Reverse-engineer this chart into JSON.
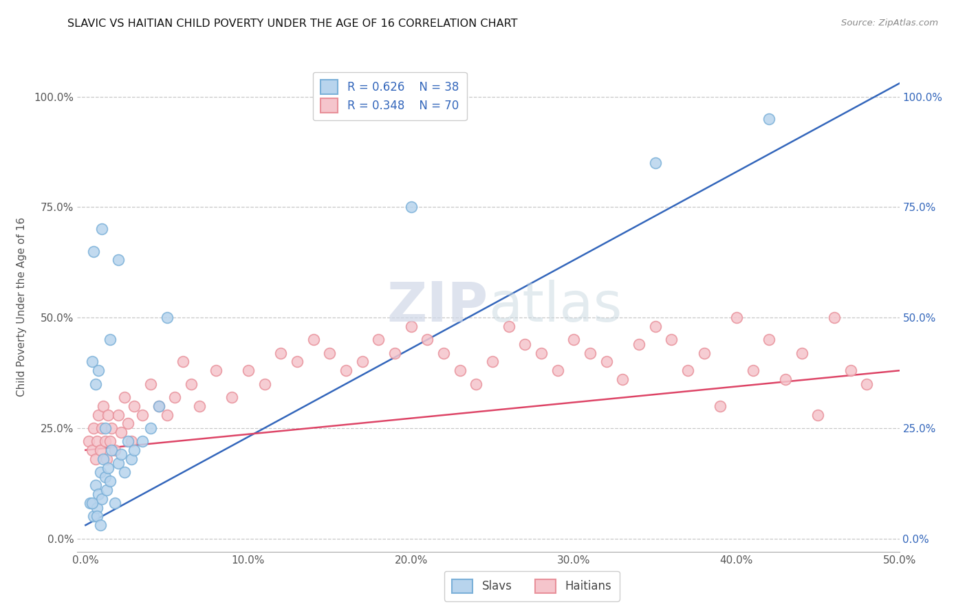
{
  "title": "SLAVIC VS HAITIAN CHILD POVERTY UNDER THE AGE OF 16 CORRELATION CHART",
  "source": "Source: ZipAtlas.com",
  "ylabel": "Child Poverty Under the Age of 16",
  "x_tick_labels": [
    "0.0%",
    "10.0%",
    "20.0%",
    "30.0%",
    "40.0%",
    "50.0%"
  ],
  "x_tick_vals": [
    0,
    10,
    20,
    30,
    40,
    50
  ],
  "y_tick_labels": [
    "0.0%",
    "25.0%",
    "50.0%",
    "75.0%",
    "100.0%"
  ],
  "y_tick_vals": [
    0,
    25,
    50,
    75,
    100
  ],
  "xlim": [
    -0.5,
    50
  ],
  "ylim": [
    -3,
    108
  ],
  "grid_color": "#c8c8c8",
  "background_color": "#ffffff",
  "slavs_color": "#7ab0d8",
  "slavs_color_fill": "#b8d4ed",
  "haitians_color": "#e8909a",
  "haitians_color_fill": "#f5c5cc",
  "slavs_label": "Slavs",
  "haitians_label": "Haitians",
  "blue_line_color": "#3366bb",
  "pink_line_color": "#dd4466",
  "slavs_x": [
    0.3,
    0.5,
    0.6,
    0.7,
    0.8,
    0.9,
    1.0,
    1.1,
    1.2,
    1.3,
    1.4,
    1.5,
    1.6,
    1.8,
    2.0,
    2.2,
    2.4,
    2.6,
    2.8,
    3.0,
    3.5,
    4.0,
    4.5,
    2.0,
    1.0,
    0.5,
    0.4,
    0.6,
    0.8,
    1.5,
    5.0,
    20.0,
    35.0,
    42.0,
    0.7,
    1.2,
    0.9,
    0.4
  ],
  "slavs_y": [
    8,
    5,
    12,
    7,
    10,
    15,
    9,
    18,
    14,
    11,
    16,
    13,
    20,
    8,
    17,
    19,
    15,
    22,
    18,
    20,
    22,
    25,
    30,
    63,
    70,
    65,
    40,
    35,
    38,
    45,
    50,
    75,
    85,
    95,
    5,
    25,
    3,
    8
  ],
  "haitians_x": [
    0.2,
    0.4,
    0.5,
    0.6,
    0.7,
    0.8,
    0.9,
    1.0,
    1.1,
    1.2,
    1.3,
    1.4,
    1.5,
    1.6,
    1.8,
    2.0,
    2.2,
    2.4,
    2.6,
    2.8,
    3.0,
    3.5,
    4.0,
    4.5,
    5.0,
    5.5,
    6.0,
    6.5,
    7.0,
    8.0,
    9.0,
    10.0,
    11.0,
    12.0,
    13.0,
    14.0,
    15.0,
    16.0,
    17.0,
    18.0,
    19.0,
    20.0,
    21.0,
    22.0,
    23.0,
    24.0,
    25.0,
    26.0,
    27.0,
    28.0,
    29.0,
    30.0,
    31.0,
    32.0,
    33.0,
    34.0,
    35.0,
    36.0,
    37.0,
    38.0,
    39.0,
    40.0,
    41.0,
    42.0,
    43.0,
    44.0,
    45.0,
    46.0,
    47.0,
    48.0
  ],
  "haitians_y": [
    22,
    20,
    25,
    18,
    22,
    28,
    20,
    25,
    30,
    22,
    18,
    28,
    22,
    25,
    20,
    28,
    24,
    32,
    26,
    22,
    30,
    28,
    35,
    30,
    28,
    32,
    40,
    35,
    30,
    38,
    32,
    38,
    35,
    42,
    40,
    45,
    42,
    38,
    40,
    45,
    42,
    48,
    45,
    42,
    38,
    35,
    40,
    48,
    44,
    42,
    38,
    45,
    42,
    40,
    36,
    44,
    48,
    45,
    38,
    42,
    30,
    50,
    38,
    45,
    36,
    42,
    28,
    50,
    38,
    35
  ],
  "blue_line_x0": 0,
  "blue_line_y0": 3,
  "blue_line_x1": 50,
  "blue_line_y1": 103,
  "pink_line_x0": 0,
  "pink_line_y0": 20,
  "pink_line_x1": 50,
  "pink_line_y1": 38
}
